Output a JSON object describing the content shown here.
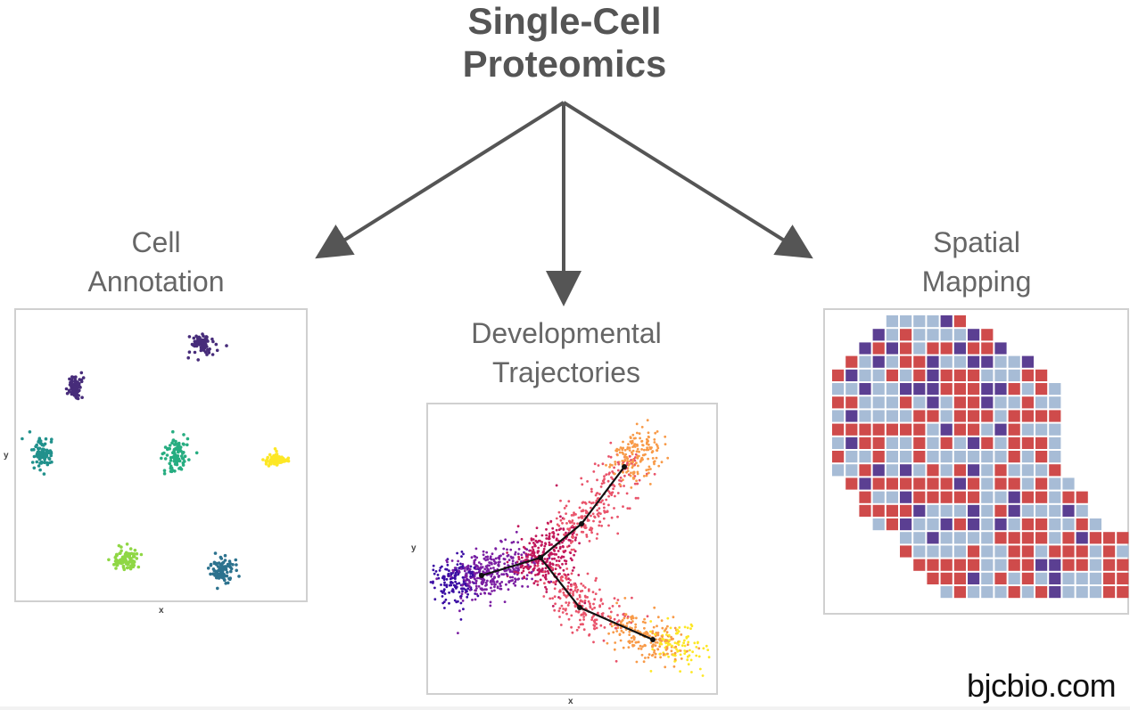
{
  "title": [
    "Single-Cell",
    "Proteomics"
  ],
  "branches": [
    {
      "id": "cell-annotation",
      "label": [
        "Cell",
        "Annotation"
      ]
    },
    {
      "id": "developmental-trajectories",
      "label": [
        "Developmental",
        "Trajectories"
      ]
    },
    {
      "id": "spatial-mapping",
      "label": [
        "Spatial",
        "Mapping"
      ]
    }
  ],
  "axis_labels": {
    "x": "x",
    "y": "y"
  },
  "colors": {
    "text": "#555555",
    "arrow": "#555555",
    "clusters": [
      "#472c7a",
      "#3b528b",
      "#21918c",
      "#27ad81",
      "#8fd744",
      "#2c728e",
      "#fde725"
    ],
    "trajectory": [
      "#3a0ca3",
      "#7b1fa2",
      "#c2185b",
      "#e9546b",
      "#f89a48",
      "#fde725"
    ],
    "spatial": {
      "purple": "#5b3f92",
      "red": "#cf4b4b",
      "blue": "#a7bcd6"
    }
  },
  "watermark": "bjcbio.com"
}
